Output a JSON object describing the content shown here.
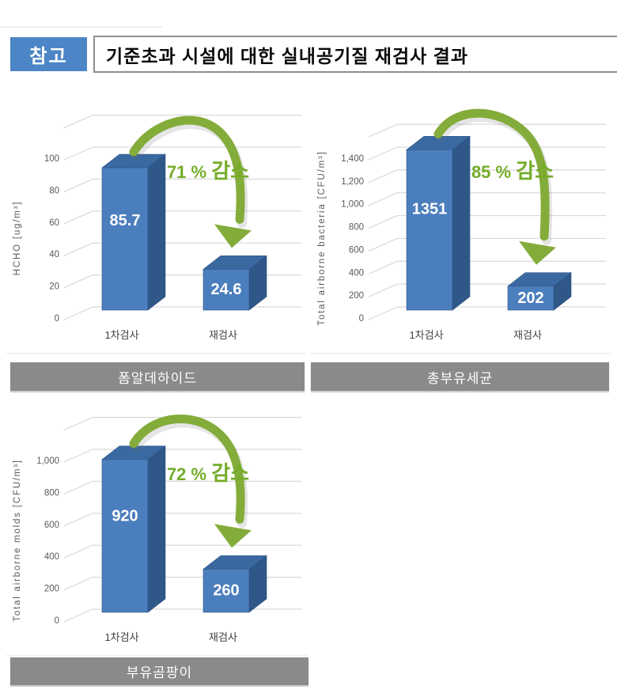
{
  "header": {
    "badge_label": "참고",
    "title": "기준초과 시설에 대한 실내공기질 재검사 결과"
  },
  "colors": {
    "badge_bg": "#4c86c6",
    "title_border": "#8f8f8f",
    "bar_front": "#4b7ebc",
    "bar_side": "#2f5787",
    "bar_top": "#3a69a2",
    "bar_edge": "#2d5485",
    "grid_line": "#d9d9d9",
    "axis_text": "#595959",
    "category_text": "#404040",
    "value_text": "#ffffff",
    "green_arrow": "#84ac3a",
    "green_text": "#74ac29",
    "panel_bg": "#8a8a8a",
    "panel_text": "#ffffff"
  },
  "chart_data": [
    {
      "type": "bar",
      "style": "3d-column",
      "panel_title": "폼알데하이드",
      "ylabel": "HCHO [ug/m³]",
      "categories": [
        "1차검사",
        "재검사"
      ],
      "values": [
        85.7,
        24.6
      ],
      "value_labels": [
        "85.7",
        "24.6"
      ],
      "ylim": [
        0,
        100
      ],
      "ytick_labels": [
        "0",
        "20",
        "40",
        "60",
        "80",
        "100"
      ],
      "annotation": "71 % 감소",
      "grid": true,
      "legend": "none"
    },
    {
      "type": "bar",
      "style": "3d-column",
      "panel_title": "총부유세균",
      "ylabel": "Total airborne bacteria [CFU/m³]",
      "categories": [
        "1차검사",
        "재검사"
      ],
      "values": [
        1351,
        202
      ],
      "value_labels": [
        "1351",
        "202"
      ],
      "ylim": [
        0,
        1400
      ],
      "ytick_labels": [
        "0",
        "200",
        "400",
        "600",
        "800",
        "1,000",
        "1,200",
        "1,400"
      ],
      "annotation": "85 % 감소",
      "grid": true,
      "legend": "none"
    },
    {
      "type": "bar",
      "style": "3d-column",
      "panel_title": "부유곰팡이",
      "ylabel": "Total airborne molds [CFU/m³]",
      "categories": [
        "1차검사",
        "재검사"
      ],
      "values": [
        920,
        260
      ],
      "value_labels": [
        "920",
        "260"
      ],
      "ylim": [
        0,
        1000
      ],
      "ytick_labels": [
        "0",
        "200",
        "400",
        "600",
        "800",
        "1,000"
      ],
      "annotation": "72 % 감소",
      "grid": true,
      "legend": "none"
    }
  ]
}
